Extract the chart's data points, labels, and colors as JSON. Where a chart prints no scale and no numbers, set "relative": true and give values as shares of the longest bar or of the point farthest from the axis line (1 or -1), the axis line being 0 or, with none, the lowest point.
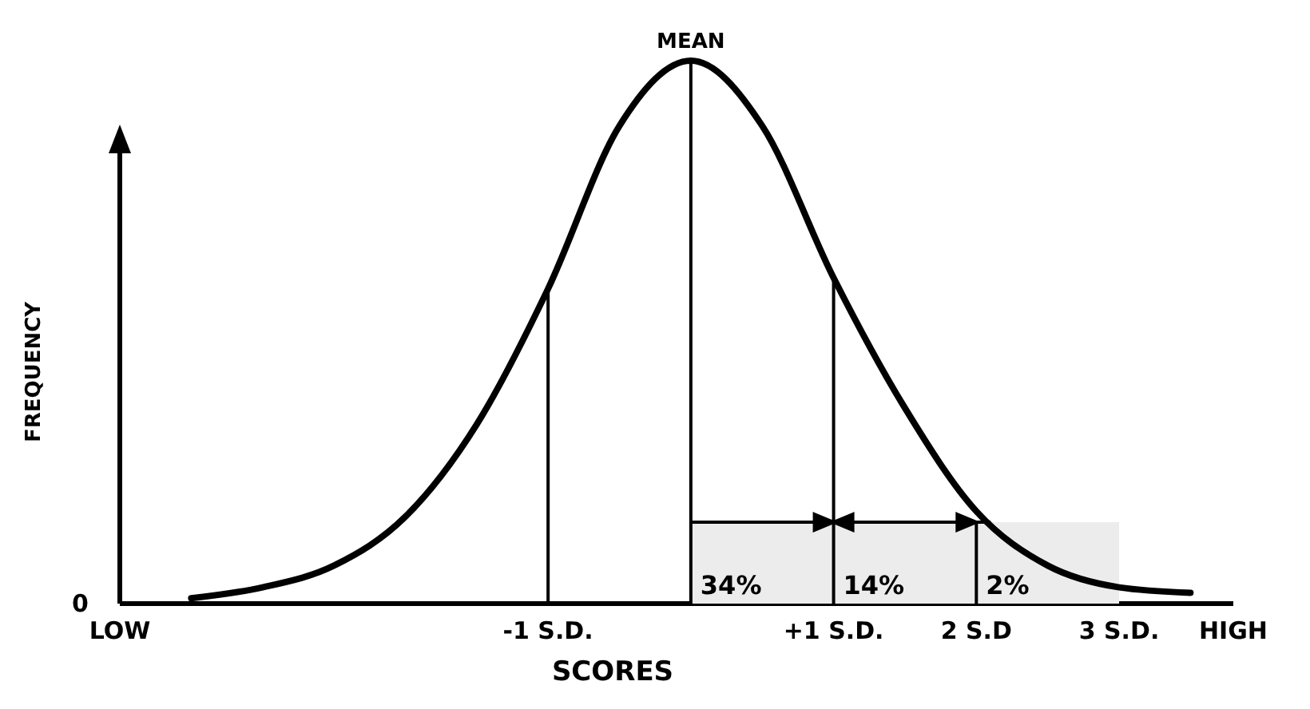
{
  "chart_data": {
    "type": "line",
    "relative": true,
    "xlabel": "SCORES",
    "ylabel": "FREQUENCY",
    "x": [
      -3.5,
      -3,
      -2.5,
      -2,
      -1.5,
      -1,
      -0.5,
      0,
      0.5,
      1,
      1.5,
      2,
      2.5,
      3,
      3.5
    ],
    "series": [
      {
        "color": "#000000",
        "values": [
          0.01,
          0.03,
          0.07,
          0.16,
          0.33,
          0.58,
          0.88,
          1,
          0.88,
          0.6,
          0.36,
          0.17,
          0.07,
          0.03,
          0.02
        ]
      }
    ],
    "xlim": [
      -4,
      3.8
    ],
    "xticks": [
      {
        "value": -4,
        "label": "LOW"
      },
      {
        "value": -1,
        "label": "-1 S.D."
      },
      {
        "value": 1,
        "label": "+1 S.D."
      },
      {
        "value": 2,
        "label": "2 S.D"
      },
      {
        "value": 3,
        "label": "3 S.D."
      },
      {
        "value": 3.8,
        "label": "HIGH"
      }
    ],
    "ref_lines": [
      {
        "axis": "x",
        "value": -1
      },
      {
        "axis": "x",
        "value": 0,
        "label": "MEAN"
      },
      {
        "axis": "x",
        "value": 1
      }
    ],
    "bands": [
      {
        "axis": "x",
        "from": 0,
        "to": 1,
        "label": "34%",
        "color": "#ececec"
      },
      {
        "axis": "x",
        "from": 1,
        "to": 2,
        "label": "14%",
        "color": "#ececec"
      },
      {
        "axis": "x",
        "from": 2,
        "to": 3,
        "label": "2%",
        "color": "#ececec"
      }
    ],
    "annotations": [
      "0"
    ],
    "marker": "none",
    "line_style": "solid",
    "grid": false
  }
}
